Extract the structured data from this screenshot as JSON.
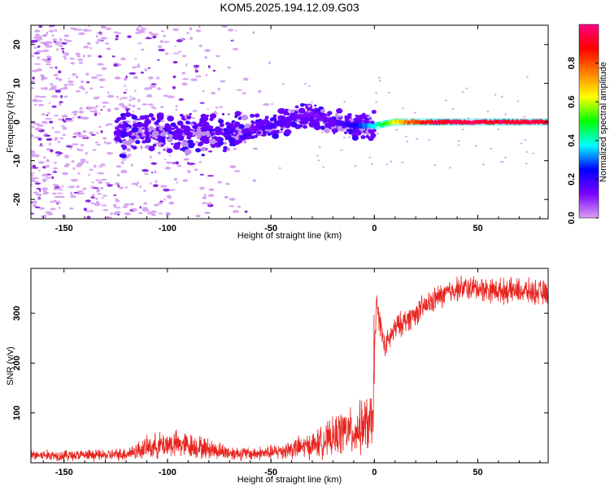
{
  "figure_title": "KOM5.2025.194.12.09.G03",
  "chart_data": [
    {
      "type": "heatmap",
      "title": "KOM5.2025.194.12.09.G03",
      "xlabel": "Height of straight line (km)",
      "ylabel": "Frequency (Hz)",
      "xlim": [
        -166,
        84
      ],
      "ylim": [
        -25,
        25
      ],
      "xticks": [
        -150,
        -100,
        -50,
        0,
        50
      ],
      "yticks": [
        -20,
        -10,
        0,
        10,
        20
      ],
      "grid": false,
      "colorbar": {
        "label": "Normalized spectral amplitude",
        "range": [
          0,
          1
        ],
        "ticks": [
          "0.0",
          "0.2",
          "0.4",
          "0.6",
          "0.8"
        ],
        "colormap": [
          "#d9a0f0",
          "#7a00ff",
          "#0000ff",
          "#00ffff",
          "#00ff00",
          "#ffff00",
          "#ff8000",
          "#ff0000",
          "#ff0080"
        ]
      },
      "ridge": [
        {
          "x": -60,
          "y": -2,
          "amp": 0.12
        },
        {
          "x": -50,
          "y": -1,
          "amp": 0.2
        },
        {
          "x": -40,
          "y": 1,
          "amp": 0.15
        },
        {
          "x": -30,
          "y": 2,
          "amp": 0.12
        },
        {
          "x": -20,
          "y": 0,
          "amp": 0.15
        },
        {
          "x": -10,
          "y": -1,
          "amp": 0.25
        },
        {
          "x": 0,
          "y": -1,
          "amp": 0.4
        },
        {
          "x": 10,
          "y": 0,
          "amp": 0.7
        },
        {
          "x": 20,
          "y": 0,
          "amp": 0.9
        },
        {
          "x": 30,
          "y": 0,
          "amp": 1.0
        },
        {
          "x": 40,
          "y": 0,
          "amp": 1.0
        },
        {
          "x": 50,
          "y": 0,
          "amp": 1.0
        },
        {
          "x": 60,
          "y": 0,
          "amp": 1.0
        },
        {
          "x": 70,
          "y": 0,
          "amp": 1.0
        },
        {
          "x": 84,
          "y": 0,
          "amp": 1.0
        }
      ]
    },
    {
      "type": "line",
      "xlabel": "Height of straight line (km)",
      "ylabel": "SNR (v/v)",
      "xlim": [
        -166,
        84
      ],
      "ylim": [
        0,
        390
      ],
      "xticks": [
        -150,
        -100,
        -50,
        0,
        50
      ],
      "yticks": [
        100,
        200,
        300
      ],
      "grid": false,
      "series_color": "#e8231e",
      "x": [
        -166,
        -150,
        -130,
        -120,
        -110,
        -100,
        -90,
        -80,
        -70,
        -60,
        -50,
        -40,
        -30,
        -20,
        -15,
        -10,
        -5,
        -1,
        0,
        1,
        5,
        10,
        20,
        30,
        40,
        50,
        60,
        70,
        84
      ],
      "y": [
        15,
        15,
        15,
        18,
        30,
        38,
        35,
        28,
        20,
        18,
        20,
        28,
        35,
        50,
        65,
        60,
        75,
        80,
        210,
        320,
        230,
        270,
        300,
        330,
        350,
        350,
        345,
        345,
        340
      ]
    }
  ]
}
